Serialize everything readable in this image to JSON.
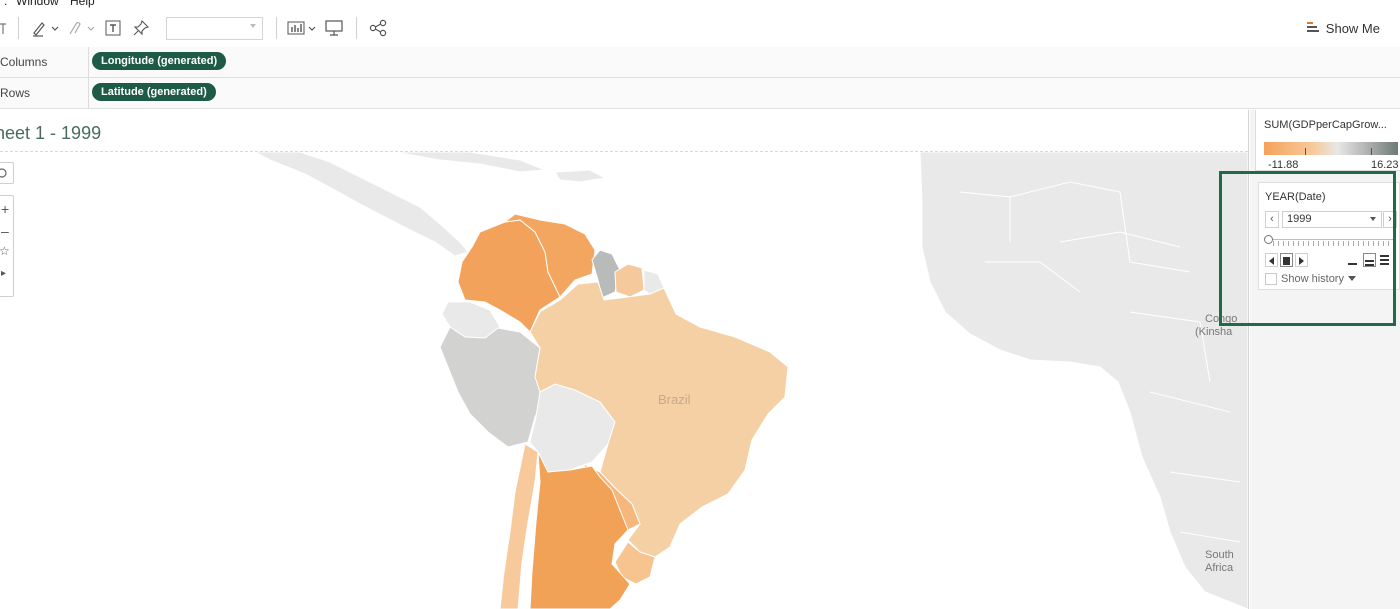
{
  "menu": {
    "window": "Window",
    "help": "Help"
  },
  "toolbar": {
    "show_me_label": "Show Me"
  },
  "shelves": {
    "columns": {
      "label": "Columns",
      "pill": "Longitude (generated)"
    },
    "rows": {
      "label": "Rows",
      "pill": "Latitude (generated)"
    }
  },
  "sheet": {
    "title": "heet 1 - 1999"
  },
  "map": {
    "labels": {
      "brazil": "Brazil",
      "congo_1": "Congo",
      "congo_2": "(Kinsha",
      "south_africa_1": "South",
      "south_africa_2": "Africa"
    },
    "fill_colors": {
      "colombia": "#f2a25a",
      "venezuela": "#f3a65f",
      "guyana": "#b9bbbb",
      "suriname": "#f6c99c",
      "brazil": "#f5d0a4",
      "peru": "#d2d2d0",
      "argentina": "#f1a257",
      "paraguay": "#f5b77c",
      "uruguay": "#f7c48f",
      "chile": "#f7c99b",
      "no_data": "#e9e9e9"
    }
  },
  "legend": {
    "title": "SUM(GDPperCapGrow...",
    "min_label": "-11.88",
    "max_label": "16.23",
    "colors": [
      "#f5a25a",
      "#f6cc9e",
      "#e7e7e7",
      "#b5b6b6",
      "#6e7a74"
    ]
  },
  "pages": {
    "title": "YEAR(Date)",
    "current_value": "1999",
    "prev_symbol": "‹",
    "next_symbol": "›",
    "show_history_label": "Show history",
    "position_fraction": 0
  },
  "highlight_color": "#1f6b45"
}
